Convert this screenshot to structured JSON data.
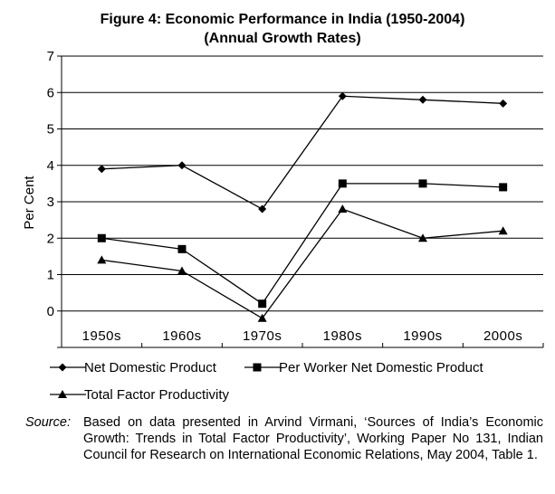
{
  "chart_data": {
    "type": "line",
    "title": "Figure 4: Economic Performance in India (1950-2004)",
    "subtitle": "(Annual Growth Rates)",
    "xlabel": "",
    "ylabel": "Per Cent",
    "ylim": [
      -1,
      7
    ],
    "yticks": [
      0,
      1,
      2,
      3,
      4,
      5,
      6,
      7
    ],
    "categories": [
      "1950s",
      "1960s",
      "1970s",
      "1980s",
      "1990s",
      "2000s"
    ],
    "grid": true,
    "series": [
      {
        "name": "Net Domestic Product",
        "marker": "diamond",
        "values": [
          3.9,
          4.0,
          2.8,
          5.9,
          5.8,
          5.7
        ]
      },
      {
        "name": "Per Worker Net Domestic Product",
        "marker": "square",
        "values": [
          2.0,
          1.7,
          0.2,
          3.5,
          3.5,
          3.4
        ]
      },
      {
        "name": "Total Factor Productivity",
        "marker": "triangle",
        "values": [
          1.4,
          1.1,
          -0.2,
          2.8,
          2.0,
          2.2
        ]
      }
    ]
  },
  "source": {
    "label": "Source:",
    "text": "Based on data presented in Arvind Virmani, ‘Sources of India’s Economic Growth: Trends in Total Factor Productivity’, Working Paper No 131, Indian Council for Research on International Economic Relations, May 2004, Table 1."
  }
}
